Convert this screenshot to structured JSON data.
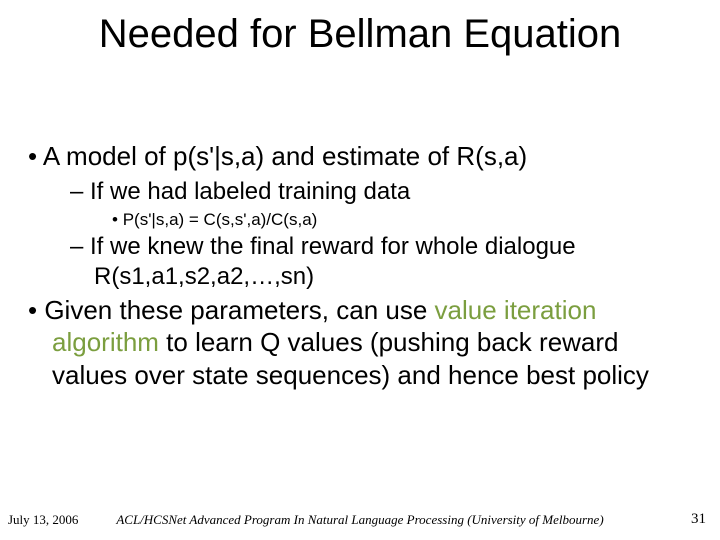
{
  "title": "Needed for Bellman Equation",
  "bullets": {
    "b1": "A model of p(s'|s,a) and estimate of R(s,a)",
    "b1a": "If we had labeled training data",
    "b1a1": "P(s'|s,a) = C(s,s',a)/C(s,a)",
    "b1b": "If we knew the final reward for whole dialogue R(s1,a1,s2,a2,…,sn)",
    "b2_pre": "Given these parameters, can use ",
    "b2_hl": "value iteration algorithm",
    "b2_post": " to learn Q values (pushing back reward values over state sequences) and hence best policy"
  },
  "footer": {
    "date": "July 13, 2006",
    "center": "ACL/HCSNet Advanced Program In Natural Language Processing (University of Melbourne)",
    "page": "31"
  },
  "colors": {
    "text": "#000000",
    "highlight": "#7b9e3f",
    "background": "#ffffff"
  },
  "fonts": {
    "title_size": 40,
    "l1_size": 26,
    "l2_size": 24,
    "l3_size": 17,
    "footer_size": 13
  }
}
